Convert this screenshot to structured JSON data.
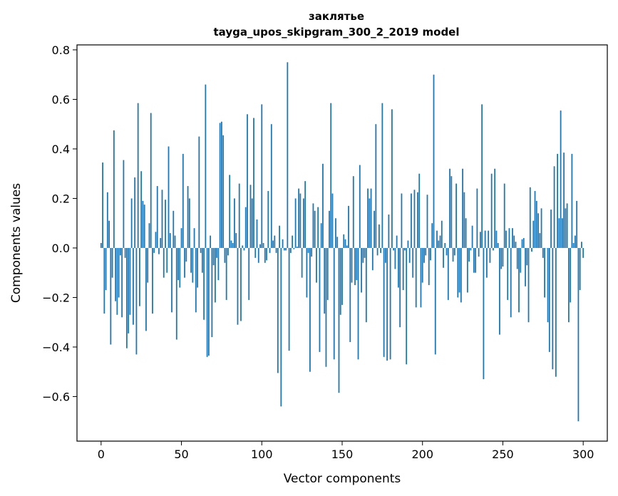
{
  "chart_data": {
    "type": "bar",
    "title": "заклятье",
    "subtitle": "tayga_upos_skipgram_300_2_2019 model",
    "xlabel": "Vector components",
    "ylabel": "Components values",
    "xlim": [
      -15,
      315
    ],
    "ylim": [
      -0.78,
      0.82
    ],
    "xticks": [
      0,
      50,
      100,
      150,
      200,
      250,
      300
    ],
    "yticks": [
      -0.6,
      -0.4,
      -0.2,
      0.0,
      0.2,
      0.4,
      0.6,
      0.8
    ],
    "ytick_labels": [
      "−0.6",
      "−0.4",
      "−0.2",
      "0.0",
      "0.2",
      "0.4",
      "0.6",
      "0.8"
    ],
    "bar_color": "#1f77b4",
    "grid": false,
    "values": [
      0.02,
      0.345,
      -0.265,
      -0.17,
      0.225,
      0.11,
      -0.39,
      -0.12,
      0.475,
      -0.215,
      -0.27,
      -0.2,
      -0.03,
      -0.28,
      0.355,
      -0.04,
      -0.405,
      -0.345,
      -0.27,
      0.2,
      -0.31,
      0.285,
      -0.43,
      0.585,
      -0.235,
      0.31,
      0.19,
      0.175,
      -0.335,
      -0.14,
      0.1,
      0.545,
      -0.265,
      -0.02,
      0.065,
      0.25,
      -0.025,
      0.04,
      0.235,
      -0.12,
      0.195,
      -0.1,
      0.41,
      0.06,
      -0.26,
      0.15,
      0.05,
      -0.37,
      -0.13,
      -0.16,
      0.08,
      0.38,
      -0.12,
      -0.055,
      0.25,
      0.2,
      -0.1,
      -0.14,
      0.08,
      -0.26,
      -0.16,
      0.45,
      -0.02,
      -0.1,
      -0.29,
      0.66,
      -0.44,
      -0.435,
      0.05,
      -0.36,
      -0.07,
      -0.22,
      -0.04,
      -0.13,
      0.505,
      0.51,
      0.455,
      -0.06,
      -0.21,
      -0.03,
      0.295,
      0.03,
      0.02,
      0.2,
      0.06,
      -0.31,
      0.26,
      -0.295,
      0.01,
      -0.01,
      0.165,
      0.54,
      -0.21,
      0.255,
      0.2,
      0.525,
      -0.04,
      0.115,
      -0.06,
      0.015,
      0.58,
      0.02,
      -0.06,
      -0.05,
      0.23,
      -0.02,
      0.5,
      0.03,
      0.05,
      -0.02,
      -0.505,
      0.09,
      -0.64,
      0.035,
      -0.01,
      -0.01,
      0.75,
      -0.415,
      -0.02,
      0.05,
      -0.005,
      0.2,
      0.005,
      0.24,
      0.22,
      -0.12,
      0.2,
      0.27,
      -0.2,
      -0.02,
      -0.5,
      -0.035,
      0.18,
      0.15,
      -0.14,
      0.165,
      -0.42,
      0.1,
      0.34,
      -0.265,
      -0.48,
      -0.21,
      0.15,
      0.585,
      0.22,
      -0.45,
      0.12,
      0.045,
      -0.585,
      -0.27,
      -0.23,
      0.055,
      0.035,
      0.01,
      0.17,
      -0.38,
      -0.14,
      0.29,
      -0.15,
      -0.13,
      -0.45,
      0.335,
      -0.18,
      -0.06,
      -0.04,
      -0.3,
      0.24,
      0.2,
      0.24,
      -0.09,
      0.15,
      0.5,
      -0.03,
      0.095,
      -0.02,
      0.585,
      -0.44,
      -0.06,
      -0.455,
      0.135,
      -0.45,
      0.56,
      -0.01,
      -0.085,
      0.05,
      -0.16,
      -0.32,
      0.22,
      -0.17,
      -0.01,
      -0.47,
      0.03,
      -0.06,
      0.22,
      -0.12,
      0.235,
      -0.24,
      0.225,
      0.3,
      -0.24,
      -0.14,
      -0.06,
      -0.03,
      0.215,
      -0.15,
      -0.05,
      0.1,
      0.7,
      -0.43,
      0.07,
      0.03,
      0.05,
      0.11,
      -0.08,
      0.02,
      -0.03,
      -0.21,
      0.32,
      0.29,
      -0.055,
      -0.03,
      0.26,
      -0.2,
      -0.18,
      -0.22,
      0.32,
      0.225,
      0.12,
      -0.18,
      -0.055,
      -0.01,
      0.09,
      -0.1,
      -0.1,
      0.24,
      -0.035,
      0.065,
      0.58,
      -0.53,
      0.07,
      -0.12,
      0.07,
      -0.06,
      0.3,
      -0.01,
      0.32,
      0.07,
      0.02,
      -0.35,
      -0.085,
      -0.075,
      0.26,
      0.07,
      -0.21,
      0.08,
      -0.28,
      0.08,
      0.05,
      0.025,
      -0.085,
      -0.26,
      -0.1,
      0.035,
      0.04,
      -0.155,
      -0.07,
      -0.3,
      0.245,
      -0.015,
      0.11,
      0.23,
      0.19,
      0.14,
      0.06,
      0.16,
      -0.04,
      -0.2,
      0.0,
      -0.3,
      -0.42,
      0.155,
      -0.49,
      0.33,
      -0.52,
      0.38,
      0.12,
      0.555,
      0.12,
      0.385,
      0.16,
      0.18,
      -0.3,
      -0.22,
      0.38,
      0.02,
      0.05,
      0.19,
      -0.7,
      -0.17,
      0.025,
      -0.04
    ]
  }
}
